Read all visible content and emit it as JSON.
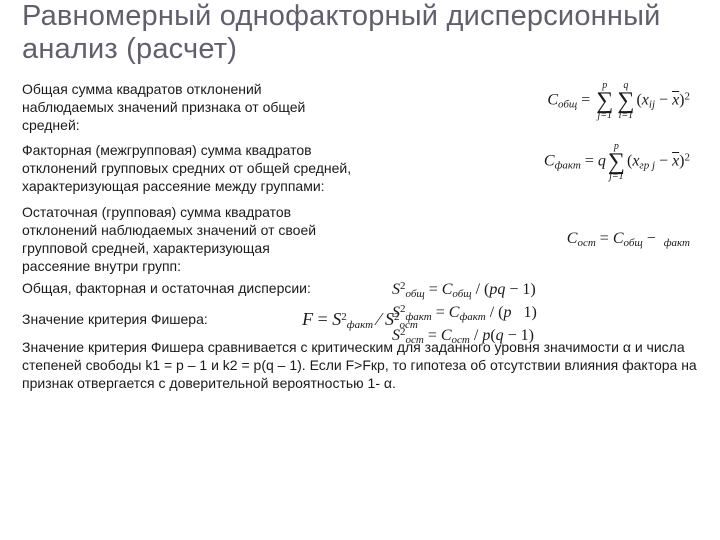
{
  "title": "Равномерный однофакторный дисперсионный анализ (расчет)",
  "rows": {
    "r1_text": "Общая сумма квадратов отклонений наблюдаемых значений признака от общей средней:",
    "r2_text": "Факторная (межгрупповая) сумма квадратов отклонений групповых средних от общей средней, характеризующая рассеяние между группами:",
    "r3_text": "Остаточная (групповая) сумма квадратов отклонений наблюдаемых значений от своей групповой средней, характеризующая рассеяние внутри групп:",
    "r4_text": "Общая, факторная и остаточная дисперсии:",
    "r5_text": "Значение критерия Фишера:",
    "r6_text": "Значение критерия Фишера сравнивается с критическим для заданного уровня значимости α и числа степеней свободы k1 = p – 1 и k2 = p(q – 1). Если F>Fкр, то гипотеза об отсутствии влияния фактора на признак отвергается с доверительной вероятностью 1- α."
  },
  "formulas": {
    "f1_html": "<span class='ital'>C</span><sub class='s'>общ</sub> = <span class='sum'><span class='top'>p</span><span class='sigma'>∑</span><span class='bot'>j=1</span></span><span class='sum'><span class='top'>q</span><span class='sigma'>∑</span><span class='bot'>i=1</span></span>(<span class='ital'>x</span><sub class='s'>ij</sub> − <span class='ital bar'>x</span>)<sup class='s'>2</sup>",
    "f2_html": "<span class='ital'>C</span><sub class='s'>факт</sub> = <span class='ital'>q</span><span class='sum'><span class='top'>p</span><span class='sigma'>∑</span><span class='bot'>j=1</span></span>(<span class='ital'>x</span><sub class='s'>гр&nbsp;j</sub> − <span class='ital bar'>x</span>)<sup class='s'>2</sup>",
    "f3_html": "<span class='ital'>C</span><sub class='s'>ост</sub> = <span class='ital'>C</span><sub class='s'>общ</sub> − &nbsp;<sub class='s'>факт</sub>",
    "f4a_html": "<span class='ital'>S</span><sup class='s'>2</sup><sub class='s'>общ</sub> = <span class='ital'>C</span><sub class='s'>общ</sub> / (<span class='ital'>pq</span> − 1)",
    "f4b_html": "<span class='ital'>S</span><sup class='s'>2</sup><sub class='s'>факт</sub> = <span class='ital'>C</span><sub class='s'>факт</sub> / (<span class='ital'>p</span> &nbsp; 1)",
    "f4c_html": "<span class='ital'>S</span><sup class='s'>2</sup><sub class='s'>ост</sub> = <span class='ital'>C</span><sub class='s'>ост</sub> / <span class='ital'>p</span>(<span class='ital'>q</span> − 1)",
    "f5_html": "<span class='ital'>F</span> = <span class='ital'>S</span><sup class='s'>2</sup><sub class='s'>факт</sub> &#8260; <span class='ital'>S</span><sup class='s'>2</sup><sub class='s'>ост</sub>"
  },
  "style": {
    "title_color": "#5f5f6e",
    "text_color": "#1a1a1a",
    "body_font": "Arial",
    "formula_font": "Times New Roman",
    "title_fontsize": 29,
    "text_fontsize": 14,
    "formula_fontsize": 16,
    "background": "#ffffff"
  }
}
